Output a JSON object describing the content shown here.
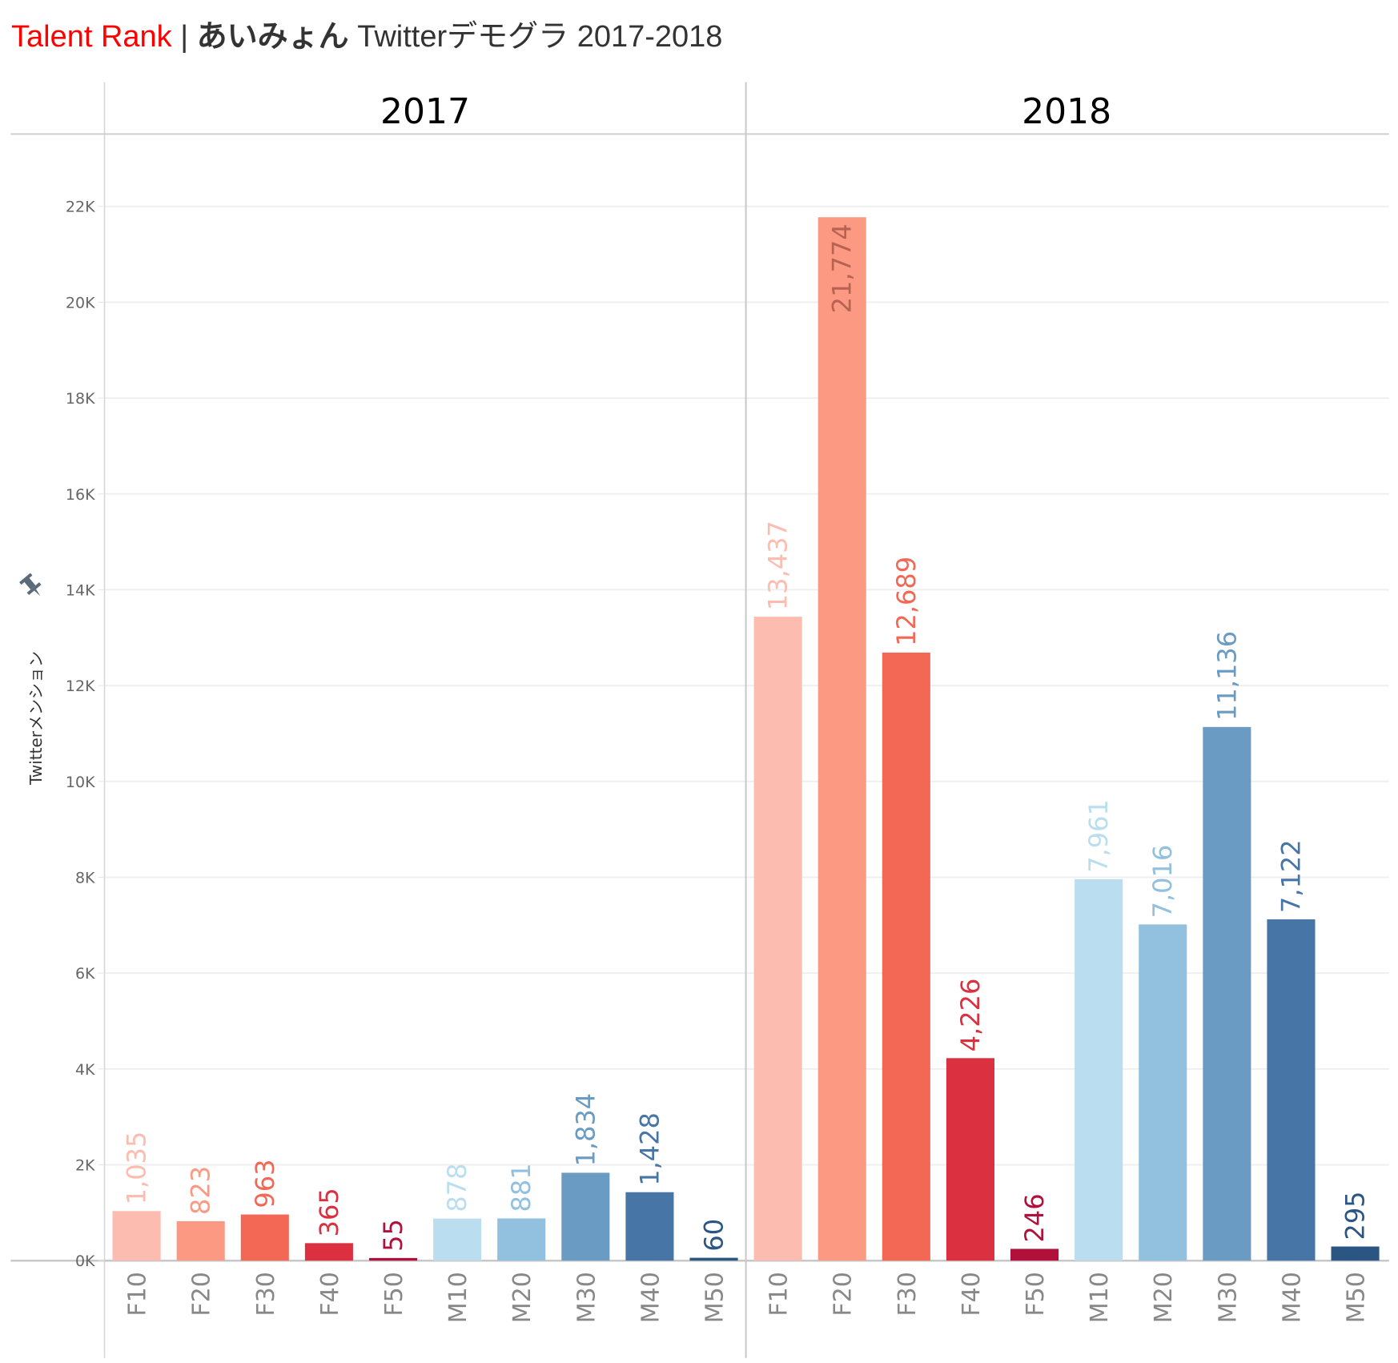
{
  "header": {
    "brand": "Talent Rank",
    "separator": "|",
    "artist": "あいみょん",
    "subtitle": "Twitterデモグラ 2017-2018"
  },
  "chart_data": {
    "type": "bar",
    "title": "Talent Rank | あいみょん Twitterデモグラ 2017-2018",
    "xlabel": "",
    "ylabel": "Twitterメンション",
    "ylim": [
      0,
      23500
    ],
    "yticks": [
      0,
      2000,
      4000,
      6000,
      8000,
      10000,
      12000,
      14000,
      16000,
      18000,
      20000,
      22000
    ],
    "ytick_labels": [
      "0K",
      "2K",
      "4K",
      "6K",
      "8K",
      "10K",
      "12K",
      "14K",
      "16K",
      "18K",
      "20K",
      "22K"
    ],
    "grid": true,
    "legend": "none",
    "categories": [
      "F10",
      "F20",
      "F30",
      "F40",
      "F50",
      "M10",
      "M20",
      "M30",
      "M40",
      "M50"
    ],
    "category_colors": [
      "#fdbcb0",
      "#fb9983",
      "#f26855",
      "#da3040",
      "#b0103a",
      "#badef0",
      "#92c0df",
      "#6a9bc3",
      "#4775a5",
      "#2b5582"
    ],
    "label_colors": [
      "#fdbcb0",
      "#fb9983",
      "#f26855",
      "#da3040",
      "#b0103a",
      "#badef0",
      "#92c0df",
      "#6a9bc3",
      "#4775a5",
      "#2b5582"
    ],
    "panels": [
      {
        "year": "2017",
        "values": [
          1035,
          823,
          963,
          365,
          55,
          878,
          881,
          1834,
          1428,
          60
        ],
        "labels": [
          "1,035",
          "823",
          "963",
          "365",
          "55",
          "878",
          "881",
          "1,834",
          "1,428",
          "60"
        ]
      },
      {
        "year": "2018",
        "values": [
          13437,
          21774,
          12689,
          4226,
          246,
          7961,
          7016,
          11136,
          7122,
          295
        ],
        "labels": [
          "13,437",
          "21,774",
          "12,689",
          "4,226",
          "246",
          "7,961",
          "7,016",
          "11,136",
          "7,122",
          "295"
        ]
      }
    ]
  },
  "icons": {
    "pin": "pin-icon"
  }
}
